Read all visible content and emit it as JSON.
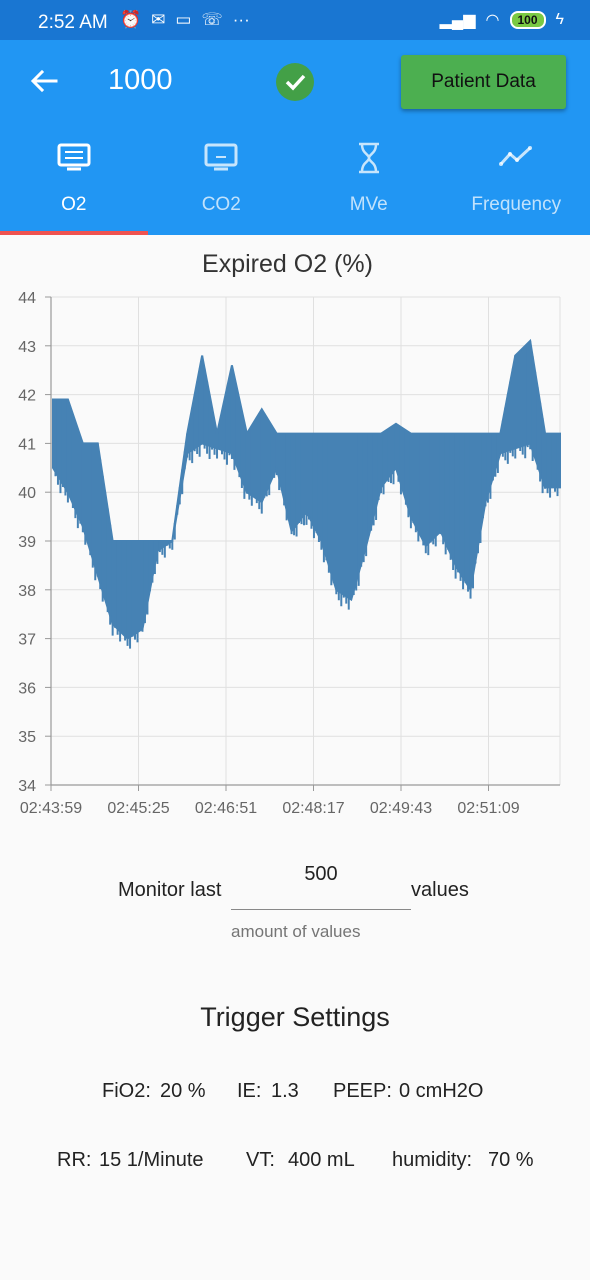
{
  "status_bar": {
    "time": "2:52 AM",
    "battery": "100",
    "icons_left": [
      "alarm-icon",
      "wechat-icon",
      "message-icon",
      "missed-call-icon",
      "more-icon"
    ],
    "icons_right": [
      "signal-icon",
      "wifi-icon",
      "battery-icon",
      "charging-icon"
    ]
  },
  "app_bar": {
    "title": "1000",
    "patient_button": "Patient Data",
    "colors": {
      "primary": "#2196f3",
      "status": "#1976d2",
      "button": "#4caf50",
      "check": "#43a047"
    }
  },
  "tabs": [
    {
      "label": "O2",
      "icon": "monitor-icon",
      "active": true
    },
    {
      "label": "CO2",
      "icon": "tv-icon",
      "active": false
    },
    {
      "label": "MVe",
      "icon": "hourglass-icon",
      "active": false
    },
    {
      "label": "Frequency",
      "icon": "trend-line-icon",
      "active": false
    }
  ],
  "tab_indicator_color": "#ef5350",
  "chart": {
    "title": "Expired O2 (%)"
  },
  "chart_data": {
    "type": "area",
    "title": "Expired O2 (%)",
    "xlabel": "",
    "ylabel": "",
    "ylim": [
      34,
      44
    ],
    "yticks": [
      34,
      35,
      36,
      37,
      38,
      39,
      40,
      41,
      42,
      43,
      44
    ],
    "xticks": [
      "02:43:59",
      "02:45:25",
      "02:46:51",
      "02:48:17",
      "02:49:43",
      "02:51:09"
    ],
    "grid": true,
    "series_color": "#4682b4",
    "series": [
      {
        "values_upper": [
          41.9,
          41.9,
          41.0,
          41.0,
          39.0,
          39.0,
          39.0,
          39.0,
          39.0,
          41.2,
          42.8,
          41.2,
          42.6,
          41.2,
          41.7,
          41.2,
          41.2,
          41.2,
          41.2,
          41.2,
          41.2,
          41.2,
          41.2,
          41.4,
          41.2,
          41.2,
          41.2,
          41.2,
          41.2,
          41.2,
          41.2,
          42.8,
          43.1,
          41.2,
          41.2
        ],
        "values_lower": [
          40.5,
          40.0,
          39.3,
          38.3,
          37.3,
          37.0,
          37.2,
          38.8,
          39.0,
          40.8,
          41.0,
          40.9,
          40.8,
          40.0,
          39.8,
          40.5,
          39.2,
          39.6,
          39.0,
          38.0,
          37.8,
          38.9,
          40.1,
          40.5,
          39.5,
          38.9,
          39.2,
          38.5,
          38.0,
          39.8,
          40.8,
          40.9,
          41.0,
          40.1,
          40.1
        ]
      }
    ]
  },
  "monitor": {
    "prefix": "Monitor last",
    "value": "500",
    "suffix": "values",
    "helper": "amount of values"
  },
  "trigger": {
    "title": "Trigger Settings",
    "row1": [
      {
        "label": "FiO2:",
        "value": "20 %"
      },
      {
        "label": "IE:",
        "value": "1.3"
      },
      {
        "label": "PEEP:",
        "value": "0 cmH2O"
      }
    ],
    "row2": [
      {
        "label": "RR:",
        "value": "15 1/Minute"
      },
      {
        "label": "VT:",
        "value": "400 mL"
      },
      {
        "label": "humidity:",
        "value": "70 %"
      }
    ]
  }
}
